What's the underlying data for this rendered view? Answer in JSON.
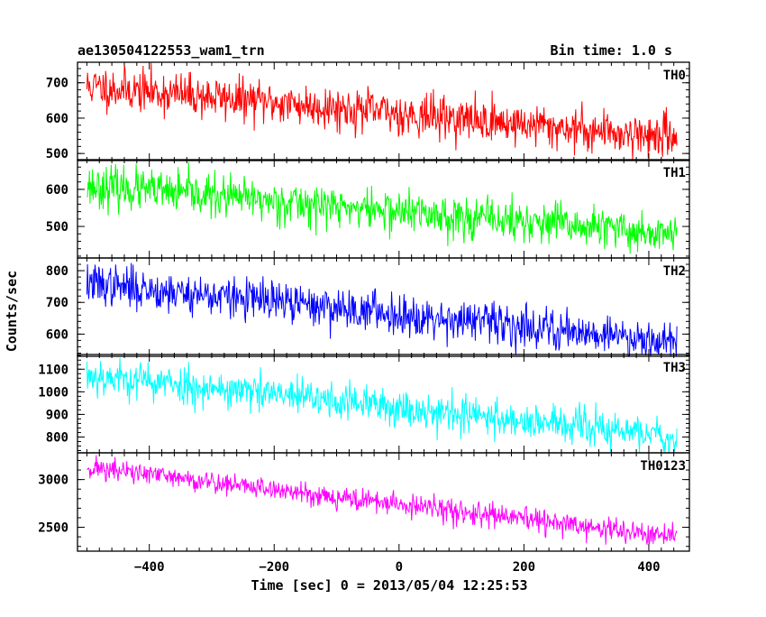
{
  "chart_data": {
    "type": "line",
    "title": "ae130504122553_wam1_trn",
    "subtitle": "Bin time: 1.0 s",
    "xlabel": "Time [sec] 0 = 2013/05/04 12:25:53",
    "ylabel": "Counts/sec",
    "xlim": [
      -515,
      465
    ],
    "x_range": [
      -500,
      445
    ],
    "x_ticks": [
      -400,
      -200,
      0,
      200,
      400
    ],
    "x_tick_labels": [
      "−400",
      "−200",
      "0",
      "200",
      "400"
    ],
    "panels": [
      {
        "name": "TH0",
        "color": "#ff0000",
        "ylim": [
          480,
          758
        ],
        "y_ticks": [
          500,
          600,
          700
        ],
        "y_tick_labels": [
          "500",
          "600",
          "700"
        ],
        "trend_start": 690,
        "trend_end": 545,
        "noise": 30,
        "seed": 11
      },
      {
        "name": "TH1",
        "color": "#00ff00",
        "ylim": [
          415,
          680
        ],
        "y_ticks": [
          500,
          600
        ],
        "y_tick_labels": [
          "500",
          "600"
        ],
        "trend_start": 610,
        "trend_end": 478,
        "noise": 28,
        "seed": 23
      },
      {
        "name": "TH2",
        "color": "#0000ff",
        "ylim": [
          530,
          840
        ],
        "y_ticks": [
          600,
          700,
          800
        ],
        "y_tick_labels": [
          "600",
          "700",
          "800"
        ],
        "trend_start": 760,
        "trend_end": 578,
        "noise": 32,
        "seed": 37
      },
      {
        "name": "TH3",
        "color": "#00ffff",
        "ylim": [
          730,
          1165
        ],
        "y_ticks": [
          800,
          900,
          1000,
          1100
        ],
        "y_tick_labels": [
          "800",
          "900",
          "1000",
          "1100"
        ],
        "trend_start": 1075,
        "trend_end": 800,
        "noise": 42,
        "seed": 53
      },
      {
        "name": "TH0123",
        "color": "#ff00ff",
        "ylim": [
          2250,
          3280
        ],
        "y_ticks": [
          2500,
          3000
        ],
        "y_tick_labels": [
          "2500",
          "3000"
        ],
        "trend_start": 3130,
        "trend_end": 2390,
        "noise": 60,
        "seed": 71
      }
    ]
  }
}
